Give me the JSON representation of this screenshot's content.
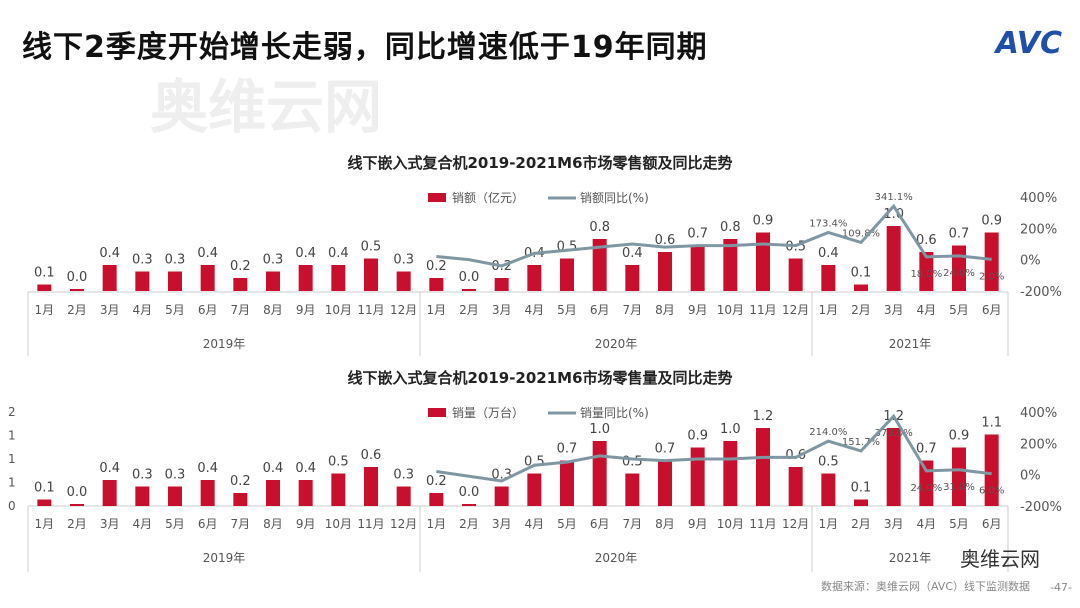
{
  "title": "线下2季度开始增长走弱，同比增速低于19年同期",
  "logo": "AVC",
  "watermark": "奥维云网",
  "source": "数据来源：奥维云网（AVC）线下监测数据",
  "page_number": "-47-",
  "wechat": "奥维云网",
  "colors": {
    "bar": "#c8102e",
    "line": "#7f97a3"
  },
  "chart_data": [
    {
      "type": "bar+line",
      "title": "线下嵌入式复合机2019-2021M6市场零售额及同比走势",
      "legend": [
        "销额（亿元）",
        "销额同比(%)"
      ],
      "categories": [
        "1月",
        "2月",
        "3月",
        "4月",
        "5月",
        "6月",
        "7月",
        "8月",
        "9月",
        "10月",
        "11月",
        "12月",
        "1月",
        "2月",
        "3月",
        "4月",
        "5月",
        "6月",
        "7月",
        "8月",
        "9月",
        "10月",
        "11月",
        "12月",
        "1月",
        "2月",
        "3月",
        "4月",
        "5月",
        "6月"
      ],
      "years": [
        "2019年",
        "2020年",
        "2021年"
      ],
      "values": [
        0.1,
        0.0,
        0.4,
        0.3,
        0.3,
        0.4,
        0.2,
        0.3,
        0.4,
        0.4,
        0.5,
        0.3,
        0.2,
        0.0,
        0.2,
        0.4,
        0.5,
        0.8,
        0.4,
        0.6,
        0.7,
        0.8,
        0.9,
        0.5,
        0.4,
        0.1,
        1.0,
        0.6,
        0.7,
        0.9
      ],
      "yoy": [
        null,
        null,
        null,
        null,
        null,
        null,
        null,
        null,
        null,
        null,
        null,
        null,
        20,
        0,
        -40,
        40,
        60,
        80,
        100,
        80,
        90,
        90,
        100,
        90,
        173.4,
        109.8,
        341.1,
        18.0,
        24.0,
        2.0
      ],
      "yoy_labels": {
        "24": "173.4%",
        "25": "109.8%",
        "26": "341.1%",
        "27": "18.0%",
        "28": "24.0%",
        "29": "2.0%"
      },
      "y2_ticks": [
        "400%",
        "200%",
        "0%",
        "-200%"
      ],
      "y2lim": [
        -200,
        400
      ],
      "left_ticks": []
    },
    {
      "type": "bar+line",
      "title": "线下嵌入式复合机2019-2021M6市场零售量及同比走势",
      "legend": [
        "销量（万台）",
        "销量同比(%)"
      ],
      "categories": [
        "1月",
        "2月",
        "3月",
        "4月",
        "5月",
        "6月",
        "7月",
        "8月",
        "9月",
        "10月",
        "11月",
        "12月",
        "1月",
        "2月",
        "3月",
        "4月",
        "5月",
        "6月",
        "7月",
        "8月",
        "9月",
        "10月",
        "11月",
        "12月",
        "1月",
        "2月",
        "3月",
        "4月",
        "5月",
        "6月"
      ],
      "years": [
        "2019年",
        "2020年",
        "2021年"
      ],
      "values": [
        0.1,
        0.0,
        0.4,
        0.3,
        0.3,
        0.4,
        0.2,
        0.4,
        0.4,
        0.5,
        0.6,
        0.3,
        0.2,
        0.0,
        0.3,
        0.5,
        0.7,
        1.0,
        0.5,
        0.7,
        0.9,
        1.0,
        1.2,
        0.6,
        0.5,
        0.1,
        1.2,
        0.7,
        0.9,
        1.1
      ],
      "yoy": [
        null,
        null,
        null,
        null,
        null,
        null,
        null,
        null,
        null,
        null,
        null,
        null,
        20,
        -10,
        -40,
        60,
        80,
        120,
        100,
        90,
        100,
        100,
        110,
        110,
        214.0,
        151.7,
        373.0,
        24.0,
        31.0,
        6.0
      ],
      "yoy_labels": {
        "24": "214.0%",
        "25": "151.7%",
        "26": "373.0%",
        "27": "24.0%",
        "28": "31.0%",
        "29": "6.0%"
      },
      "y2_ticks": [
        "400%",
        "200%",
        "0%",
        "-200%"
      ],
      "y2lim": [
        -200,
        400
      ],
      "left_ticks": [
        "2",
        "1",
        "1",
        "1",
        "0"
      ]
    }
  ]
}
